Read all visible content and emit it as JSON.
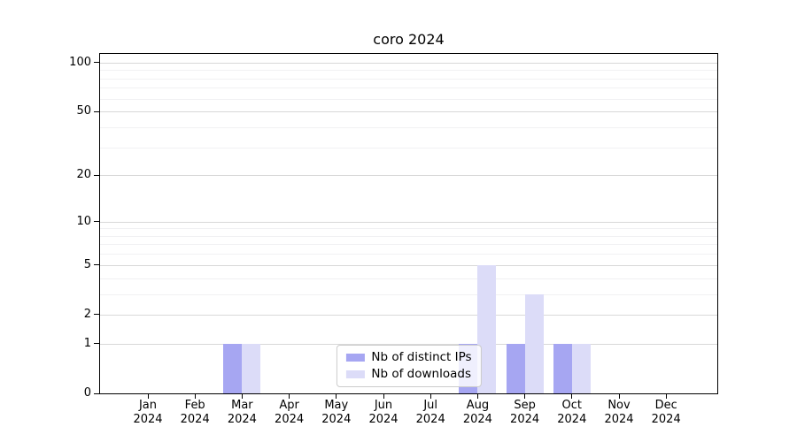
{
  "figure": {
    "title": "coro 2024"
  },
  "chart_data": {
    "type": "bar",
    "title": "coro 2024",
    "categories": [
      "Jan",
      "Feb",
      "Mar",
      "Apr",
      "May",
      "Jun",
      "Jul",
      "Aug",
      "Sep",
      "Oct",
      "Nov",
      "Dec"
    ],
    "category_year": "2024",
    "series": [
      {
        "name": "Nb of distinct IPs",
        "color": "#a6a6f2",
        "values": [
          0,
          0,
          1,
          0,
          0,
          0,
          0,
          1,
          1,
          1,
          0,
          0
        ]
      },
      {
        "name": "Nb of downloads",
        "color": "#dcdcf8",
        "values": [
          0,
          0,
          1,
          0,
          0,
          0,
          0,
          5,
          3,
          1,
          0,
          0
        ]
      }
    ],
    "xlabel": "",
    "ylabel": "",
    "yscale": "log1p",
    "yticks": [
      0,
      1,
      2,
      5,
      10,
      20,
      50,
      100
    ],
    "minor_gridlines": [
      3,
      4,
      6,
      7,
      8,
      9,
      30,
      40,
      60,
      70,
      80,
      90
    ],
    "ylim": [
      0,
      113
    ],
    "grid": "horizontal",
    "legend_position": "lower-center-inside"
  },
  "colors": {
    "background": "#ffffff",
    "spine": "#000000",
    "major_grid": "#d8d8d8",
    "minor_grid": "#f1f1f3",
    "legend_border": "#cccccc",
    "series_dark": "#a6a6f2",
    "series_light": "#dcdcf8"
  }
}
